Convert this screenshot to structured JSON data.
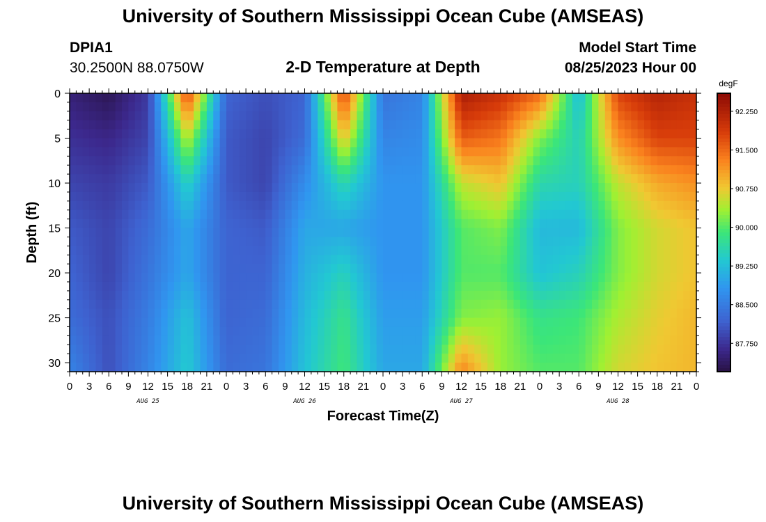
{
  "header": {
    "title": "University of Southern Mississippi Ocean Cube (AMSEAS)",
    "station_id": "DPIA1",
    "station_coords": "30.2500N  88.0750W",
    "plot_title": "2-D Temperature at Depth",
    "model_start_label": "Model Start Time",
    "model_start_value": "08/25/2023 Hour 00"
  },
  "footer": {
    "title": "University of Southern Mississippi Ocean Cube (AMSEAS)"
  },
  "chart_data": {
    "type": "heatmap",
    "xlabel": "Forecast Time(Z)",
    "ylabel": "Depth (ft)",
    "x_range_hours": [
      0,
      96
    ],
    "y_range_ft": [
      0,
      31
    ],
    "x_tick_labels": [
      "0",
      "3",
      "6",
      "9",
      "12",
      "15",
      "18",
      "21",
      "0",
      "3",
      "6",
      "9",
      "12",
      "15",
      "18",
      "21",
      "0",
      "3",
      "6",
      "9",
      "12",
      "15",
      "18",
      "21",
      "0",
      "3",
      "6",
      "9",
      "12",
      "15",
      "18",
      "21",
      "0"
    ],
    "day_labels": [
      "AUG 25",
      "AUG 26",
      "AUG 27",
      "AUG 28"
    ],
    "y_ticks": [
      0,
      5,
      10,
      15,
      20,
      25,
      30
    ],
    "colorbar": {
      "unit": "degF",
      "range": [
        87.2,
        92.6
      ],
      "ticks": [
        "87.750",
        "88.500",
        "89.250",
        "90.000",
        "90.750",
        "91.500",
        "92.250"
      ],
      "tick_values": [
        87.75,
        88.5,
        89.25,
        90.0,
        90.75,
        91.5,
        92.25
      ]
    },
    "time_hours": [
      0,
      6,
      12,
      18,
      24,
      30,
      36,
      42,
      48,
      54,
      60,
      66,
      72,
      78,
      84,
      90,
      96
    ],
    "depth_ft": [
      0,
      5,
      10,
      15,
      20,
      25,
      31
    ],
    "temperature_degF": [
      [
        87.5,
        87.3,
        87.8,
        91.8,
        88.2,
        88.0,
        88.2,
        91.8,
        88.4,
        88.6,
        92.3,
        92.0,
        91.5,
        89.2,
        91.8,
        92.2,
        92.0
      ],
      [
        87.7,
        87.6,
        87.9,
        90.5,
        88.1,
        87.9,
        88.3,
        90.8,
        88.6,
        88.7,
        91.6,
        91.4,
        90.2,
        89.5,
        91.2,
        91.8,
        91.8
      ],
      [
        87.9,
        87.8,
        88.1,
        89.5,
        88.1,
        87.9,
        88.7,
        89.6,
        88.8,
        88.8,
        90.5,
        90.8,
        89.6,
        89.5,
        90.5,
        91.0,
        91.2
      ],
      [
        88.1,
        87.9,
        88.3,
        89.0,
        88.2,
        88.1,
        89.0,
        89.0,
        88.8,
        88.8,
        90.0,
        90.2,
        89.2,
        89.2,
        90.2,
        90.6,
        90.8
      ],
      [
        88.2,
        87.9,
        88.4,
        89.0,
        88.2,
        88.2,
        89.1,
        89.5,
        88.8,
        88.8,
        90.0,
        90.0,
        89.3,
        89.5,
        90.2,
        90.6,
        90.8
      ],
      [
        88.3,
        88.0,
        88.5,
        89.3,
        88.2,
        88.3,
        89.2,
        89.8,
        88.9,
        88.9,
        90.2,
        90.3,
        89.8,
        89.9,
        90.4,
        90.7,
        90.9
      ],
      [
        88.6,
        88.0,
        88.6,
        89.4,
        88.3,
        88.4,
        89.3,
        89.9,
        89.0,
        89.0,
        91.3,
        90.3,
        90.0,
        90.0,
        90.6,
        90.8,
        90.9
      ]
    ]
  }
}
